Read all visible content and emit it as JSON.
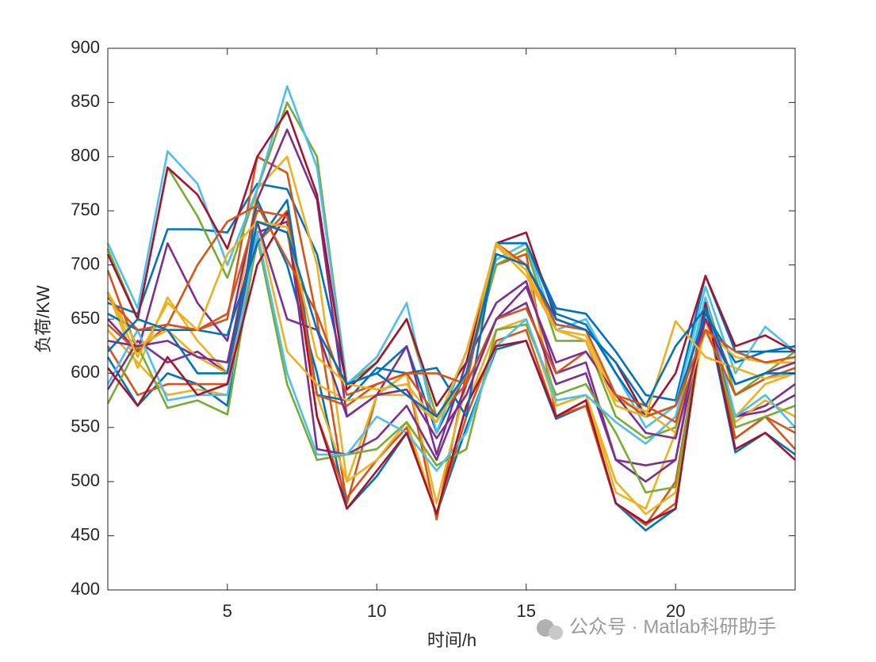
{
  "chart_data": {
    "type": "line",
    "xlabel": "时间/h",
    "ylabel": "负荷/KW",
    "x": [
      1,
      2,
      3,
      4,
      5,
      6,
      7,
      8,
      9,
      10,
      11,
      12,
      13,
      14,
      15,
      16,
      17,
      18,
      19,
      20,
      21,
      22,
      23,
      24
    ],
    "xlim": [
      1,
      24
    ],
    "xticks": [
      5,
      10,
      15,
      20
    ],
    "ylim": [
      400,
      900
    ],
    "yticks": [
      400,
      450,
      500,
      550,
      600,
      650,
      700,
      750,
      800,
      850,
      900
    ],
    "grid": false,
    "watermark": "公众号 · Matlab科研助手",
    "series": [
      {
        "color": "#0072BD",
        "values": [
          665,
          655,
          733,
          733,
          730,
          775,
          770,
          710,
          590,
          600,
          625,
          545,
          600,
          720,
          720,
          660,
          655,
          620,
          580,
          575,
          690,
          620,
          620,
          620
        ]
      },
      {
        "color": "#D95319",
        "values": [
          695,
          620,
          645,
          640,
          650,
          800,
          785,
          650,
          480,
          580,
          600,
          465,
          600,
          700,
          710,
          560,
          575,
          480,
          460,
          500,
          660,
          540,
          560,
          530
        ]
      },
      {
        "color": "#EDB120",
        "values": [
          675,
          605,
          670,
          630,
          600,
          770,
          800,
          700,
          500,
          580,
          600,
          480,
          590,
          720,
          700,
          570,
          580,
          490,
          475,
          545,
          650,
          560,
          590,
          600
        ]
      },
      {
        "color": "#7E2F8E",
        "values": [
          650,
          620,
          720,
          665,
          630,
          760,
          825,
          760,
          560,
          580,
          625,
          525,
          610,
          665,
          685,
          600,
          610,
          520,
          500,
          520,
          660,
          560,
          570,
          590
        ]
      },
      {
        "color": "#77AC30",
        "values": [
          715,
          650,
          790,
          745,
          688,
          770,
          850,
          800,
          590,
          610,
          650,
          560,
          600,
          700,
          715,
          630,
          630,
          560,
          540,
          550,
          670,
          580,
          600,
          620
        ]
      },
      {
        "color": "#4DBEEE",
        "values": [
          720,
          660,
          805,
          775,
          700,
          770,
          865,
          790,
          590,
          615,
          665,
          545,
          620,
          705,
          720,
          640,
          650,
          600,
          550,
          570,
          680,
          600,
          643,
          620
        ]
      },
      {
        "color": "#A2142F",
        "values": [
          710,
          650,
          790,
          765,
          715,
          800,
          842,
          765,
          585,
          610,
          650,
          570,
          610,
          720,
          730,
          650,
          640,
          610,
          560,
          600,
          690,
          625,
          635,
          620
        ]
      },
      {
        "color": "#0072BD",
        "values": [
          615,
          570,
          600,
          590,
          570,
          760,
          700,
          600,
          475,
          505,
          545,
          470,
          550,
          622,
          630,
          558,
          570,
          480,
          455,
          475,
          660,
          527,
          545,
          525
        ]
      },
      {
        "color": "#D95319",
        "values": [
          625,
          580,
          590,
          590,
          590,
          720,
          750,
          560,
          485,
          520,
          550,
          470,
          560,
          630,
          640,
          560,
          570,
          480,
          460,
          480,
          660,
          540,
          560,
          545
        ]
      },
      {
        "color": "#EDB120",
        "values": [
          640,
          610,
          580,
          585,
          580,
          740,
          730,
          580,
          500,
          520,
          555,
          470,
          570,
          640,
          650,
          570,
          580,
          500,
          470,
          490,
          650,
          555,
          575,
          560
        ]
      },
      {
        "color": "#7E2F8E",
        "values": [
          585,
          630,
          610,
          620,
          600,
          730,
          740,
          530,
          525,
          540,
          570,
          520,
          590,
          650,
          665,
          590,
          600,
          520,
          515,
          520,
          665,
          560,
          565,
          580
        ]
      },
      {
        "color": "#77AC30",
        "values": [
          572,
          625,
          568,
          575,
          562,
          725,
          590,
          520,
          525,
          530,
          555,
          515,
          530,
          640,
          645,
          580,
          590,
          545,
          490,
          495,
          660,
          550,
          560,
          570
        ]
      },
      {
        "color": "#4DBEEE",
        "values": [
          590,
          640,
          575,
          580,
          580,
          730,
          600,
          525,
          525,
          560,
          545,
          510,
          545,
          625,
          650,
          575,
          580,
          555,
          535,
          560,
          670,
          560,
          580,
          550
        ]
      },
      {
        "color": "#A2142F",
        "values": [
          605,
          570,
          615,
          580,
          590,
          700,
          748,
          560,
          475,
          510,
          545,
          470,
          570,
          625,
          630,
          560,
          575,
          480,
          462,
          475,
          665,
          530,
          545,
          520
        ]
      },
      {
        "color": "#0072BD",
        "values": [
          655,
          640,
          640,
          640,
          635,
          720,
          760,
          580,
          575,
          605,
          600,
          605,
          560,
          720,
          720,
          655,
          645,
          600,
          560,
          570,
          655,
          610,
          620,
          625
        ]
      },
      {
        "color": "#D95319",
        "values": [
          645,
          620,
          645,
          640,
          655,
          750,
          745,
          580,
          570,
          590,
          600,
          560,
          590,
          650,
          660,
          600,
          620,
          580,
          570,
          555,
          640,
          580,
          595,
          605
        ]
      },
      {
        "color": "#EDB120",
        "values": [
          675,
          625,
          640,
          615,
          600,
          740,
          620,
          590,
          575,
          580,
          580,
          555,
          620,
          718,
          690,
          640,
          635,
          575,
          565,
          545,
          640,
          615,
          610,
          610
        ]
      },
      {
        "color": "#7E2F8E",
        "values": [
          630,
          625,
          630,
          615,
          610,
          740,
          650,
          640,
          560,
          580,
          585,
          540,
          580,
          650,
          680,
          610,
          620,
          580,
          545,
          540,
          650,
          590,
          600,
          610
        ]
      },
      {
        "color": "#D95319",
        "values": [
          670,
          640,
          645,
          700,
          740,
          755,
          705,
          655,
          580,
          590,
          600,
          600,
          590,
          720,
          700,
          645,
          640,
          580,
          560,
          570,
          640,
          620,
          610,
          615
        ]
      },
      {
        "color": "#EDB120",
        "values": [
          675,
          615,
          665,
          640,
          710,
          740,
          735,
          615,
          590,
          585,
          590,
          555,
          600,
          720,
          695,
          640,
          630,
          570,
          560,
          648,
          615,
          605,
          595,
          600
        ]
      },
      {
        "color": "#0072BD",
        "values": [
          620,
          650,
          640,
          600,
          600,
          740,
          730,
          640,
          590,
          600,
          580,
          560,
          600,
          710,
          700,
          650,
          640,
          610,
          570,
          625,
          660,
          590,
          600,
          600
        ]
      }
    ]
  }
}
